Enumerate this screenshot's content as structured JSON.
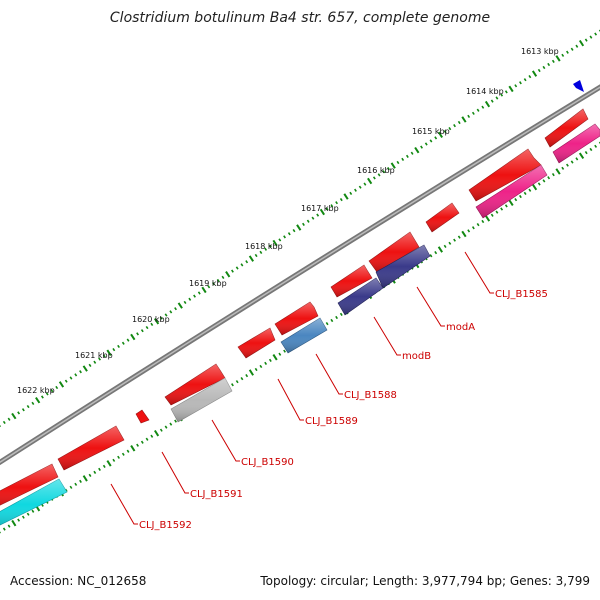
{
  "title": "Clostridium botulinum Ba4 str. 657, complete genome",
  "ticks": [
    "1613 kbp",
    "1614 kbp",
    "1615 kbp",
    "1616 kbp",
    "1617 kbp",
    "1618 kbp",
    "1619 kbp",
    "1620 kbp",
    "1621 kbp",
    "1622 kbp"
  ],
  "gene_labels": [
    "CLJ_B1585",
    "modA",
    "modB",
    "CLJ_B1588",
    "CLJ_B1589",
    "CLJ_B1590",
    "CLJ_B1591",
    "CLJ_B1592"
  ],
  "colors": {
    "backbone": "#888888",
    "cds": "#ee1111",
    "modA": "#3a3a8a",
    "modB": "#3a3a8a",
    "CLJ_B1588": "#4a86c0",
    "CLJ_B1590": "#b8b8b8",
    "CLJ_B1592": "#10d8e0",
    "CLJ_B1585": "#ee2288",
    "extra": "#ee2288",
    "tick": "#118811",
    "marker": "#0000dd",
    "label": "#cc0000"
  },
  "footer": {
    "accession": "Accession: NC_012658",
    "topology": "Topology: circular; Length: 3,977,794 bp; Genes: 3,799"
  }
}
